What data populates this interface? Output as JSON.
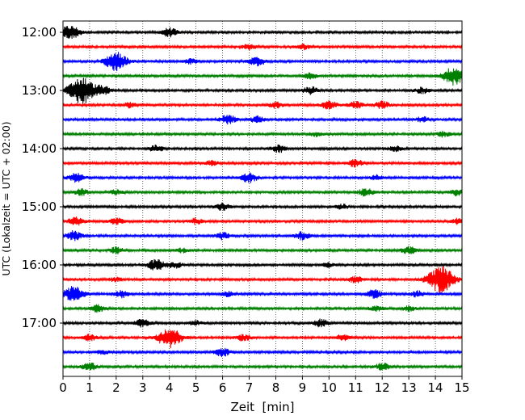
{
  "chart_data": {
    "type": "line",
    "title": "",
    "xlabel": "Zeit  [min]",
    "ylabel": "UTC (Lokalzeit = UTC + 02:00)",
    "xlim": [
      0,
      15
    ],
    "x_ticks": [
      0,
      1,
      2,
      3,
      4,
      5,
      6,
      7,
      8,
      9,
      10,
      11,
      12,
      13,
      14,
      15
    ],
    "x_tick_labels": [
      "0",
      "1",
      "2",
      "3",
      "4",
      "5",
      "6",
      "7",
      "8",
      "9",
      "10",
      "11",
      "12",
      "13",
      "14",
      "15"
    ],
    "y_ticks": [
      {
        "label": "12:00",
        "trace": 0
      },
      {
        "label": "13:00",
        "trace": 4
      },
      {
        "label": "14:00",
        "trace": 8
      },
      {
        "label": "15:00",
        "trace": 12
      },
      {
        "label": "16:00",
        "trace": 16
      },
      {
        "label": "17:00",
        "trace": 20
      }
    ],
    "grid": {
      "x": "vertical dotted lines at each minute",
      "y": false
    },
    "color_cycle": [
      "#000000",
      "#ff0000",
      "#0000ff",
      "#008000"
    ],
    "series": [
      {
        "start": "12:00",
        "color": "#000000",
        "events": [
          [
            0.2,
            2.2
          ],
          [
            4.0,
            1.6
          ],
          [
            0.5,
            0.8
          ]
        ]
      },
      {
        "start": "12:15",
        "color": "#ff0000",
        "events": [
          [
            7.0,
            1.0
          ],
          [
            9.0,
            1.0
          ]
        ]
      },
      {
        "start": "12:30",
        "color": "#0000ff",
        "events": [
          [
            2.0,
            3.5
          ],
          [
            7.3,
            1.8
          ],
          [
            4.8,
            0.9
          ]
        ]
      },
      {
        "start": "12:45",
        "color": "#008000",
        "events": [
          [
            14.7,
            3.5
          ],
          [
            9.3,
            1.0
          ]
        ]
      },
      {
        "start": "13:00",
        "color": "#000000",
        "events": [
          [
            0.7,
            5.0
          ],
          [
            9.3,
            1.4
          ],
          [
            13.5,
            1.1
          ],
          [
            1.5,
            1.5
          ]
        ]
      },
      {
        "start": "13:15",
        "color": "#ff0000",
        "events": [
          [
            10.0,
            1.6
          ],
          [
            11.0,
            1.3
          ],
          [
            12.0,
            1.4
          ],
          [
            8.0,
            1.1
          ],
          [
            2.5,
            0.9
          ]
        ]
      },
      {
        "start": "13:30",
        "color": "#0000ff",
        "events": [
          [
            6.2,
            1.7
          ],
          [
            7.3,
            1.2
          ],
          [
            13.5,
            1.0
          ]
        ]
      },
      {
        "start": "13:45",
        "color": "#008000",
        "events": [
          [
            14.3,
            1.0
          ],
          [
            9.5,
            0.8
          ]
        ]
      },
      {
        "start": "14:00",
        "color": "#000000",
        "events": [
          [
            3.5,
            1.2
          ],
          [
            8.1,
            1.4
          ],
          [
            12.5,
            0.9
          ]
        ]
      },
      {
        "start": "14:15",
        "color": "#ff0000",
        "events": [
          [
            11.0,
            1.4
          ],
          [
            5.6,
            0.9
          ]
        ]
      },
      {
        "start": "14:30",
        "color": "#0000ff",
        "events": [
          [
            0.5,
            1.6
          ],
          [
            7.0,
            1.8
          ],
          [
            11.8,
            0.9
          ]
        ]
      },
      {
        "start": "14:45",
        "color": "#008000",
        "events": [
          [
            0.7,
            1.2
          ],
          [
            11.4,
            1.5
          ],
          [
            14.8,
            1.2
          ],
          [
            2.0,
            0.8
          ]
        ]
      },
      {
        "start": "15:00",
        "color": "#000000",
        "events": [
          [
            6.0,
            1.3
          ],
          [
            10.5,
            0.9
          ]
        ]
      },
      {
        "start": "15:15",
        "color": "#ff0000",
        "events": [
          [
            0.5,
            1.6
          ],
          [
            2.0,
            1.2
          ],
          [
            5.0,
            1.1
          ],
          [
            14.8,
            1.0
          ]
        ]
      },
      {
        "start": "15:30",
        "color": "#0000ff",
        "events": [
          [
            0.4,
            1.8
          ],
          [
            6.0,
            1.3
          ],
          [
            9.0,
            1.5
          ]
        ]
      },
      {
        "start": "15:45",
        "color": "#008000",
        "events": [
          [
            2.0,
            1.2
          ],
          [
            4.5,
            0.8
          ],
          [
            13.0,
            1.4
          ]
        ]
      },
      {
        "start": "16:00",
        "color": "#000000",
        "events": [
          [
            3.5,
            2.0
          ],
          [
            4.2,
            1.2
          ],
          [
            10.0,
            0.8
          ]
        ]
      },
      {
        "start": "16:15",
        "color": "#ff0000",
        "events": [
          [
            14.2,
            5.0
          ],
          [
            11.0,
            1.2
          ],
          [
            2.0,
            0.8
          ]
        ]
      },
      {
        "start": "16:30",
        "color": "#0000ff",
        "events": [
          [
            0.4,
            3.0
          ],
          [
            2.2,
            1.3
          ],
          [
            11.7,
            1.6
          ],
          [
            13.3,
            1.2
          ],
          [
            6.2,
            0.9
          ]
        ]
      },
      {
        "start": "16:45",
        "color": "#008000",
        "events": [
          [
            1.3,
            1.3
          ],
          [
            11.8,
            1.1
          ],
          [
            13.0,
            0.9
          ]
        ]
      },
      {
        "start": "17:00",
        "color": "#000000",
        "events": [
          [
            3.0,
            1.5
          ],
          [
            9.7,
            1.5
          ],
          [
            5.0,
            0.9
          ]
        ]
      },
      {
        "start": "17:15",
        "color": "#ff0000",
        "events": [
          [
            4.0,
            4.0
          ],
          [
            1.0,
            1.2
          ],
          [
            6.8,
            1.2
          ],
          [
            10.5,
            1.1
          ]
        ]
      },
      {
        "start": "17:30",
        "color": "#0000ff",
        "events": [
          [
            6.0,
            1.5
          ],
          [
            1.5,
            0.8
          ]
        ]
      },
      {
        "start": "17:45",
        "color": "#008000",
        "events": [
          [
            1.0,
            1.4
          ],
          [
            12.0,
            1.3
          ]
        ]
      }
    ]
  }
}
